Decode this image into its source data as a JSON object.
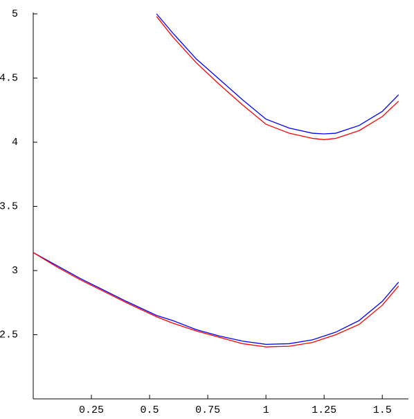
{
  "chart_data": {
    "type": "line",
    "x": [
      0,
      0.1,
      0.2,
      0.3,
      0.4,
      0.53,
      0.6,
      0.7,
      0.8,
      0.9,
      1.0,
      1.1,
      1.2,
      1.25,
      1.3,
      1.4,
      1.5,
      1.57
    ],
    "series": [
      {
        "color": "#0000ff",
        "values": [
          null,
          null,
          null,
          null,
          null,
          5.0,
          4.85,
          4.65,
          4.49,
          4.33,
          4.18,
          4.11,
          4.07,
          4.065,
          4.07,
          4.13,
          4.24,
          4.37
        ]
      },
      {
        "color": "#ff0000",
        "values": [
          null,
          null,
          null,
          null,
          null,
          4.98,
          4.82,
          4.62,
          4.45,
          4.29,
          4.14,
          4.07,
          4.03,
          4.02,
          4.03,
          4.09,
          4.2,
          4.32
        ]
      },
      {
        "color": "#0000ff",
        "values": [
          3.14,
          3.04,
          2.94,
          2.85,
          2.76,
          2.65,
          2.61,
          2.54,
          2.49,
          2.45,
          2.425,
          2.43,
          2.46,
          2.49,
          2.52,
          2.61,
          2.76,
          2.91
        ]
      },
      {
        "color": "#ff0000",
        "values": [
          3.14,
          3.03,
          2.93,
          2.84,
          2.75,
          2.64,
          2.59,
          2.53,
          2.48,
          2.43,
          2.405,
          2.41,
          2.44,
          2.47,
          2.5,
          2.58,
          2.73,
          2.88
        ]
      }
    ],
    "xlim": [
      0,
      1.5708
    ],
    "ylim": [
      2,
      5
    ],
    "xticks": [
      0.25,
      0.5,
      0.75,
      1,
      1.25,
      1.5
    ],
    "yticks": [
      2.5,
      3,
      3.5,
      4,
      4.5,
      5
    ]
  }
}
